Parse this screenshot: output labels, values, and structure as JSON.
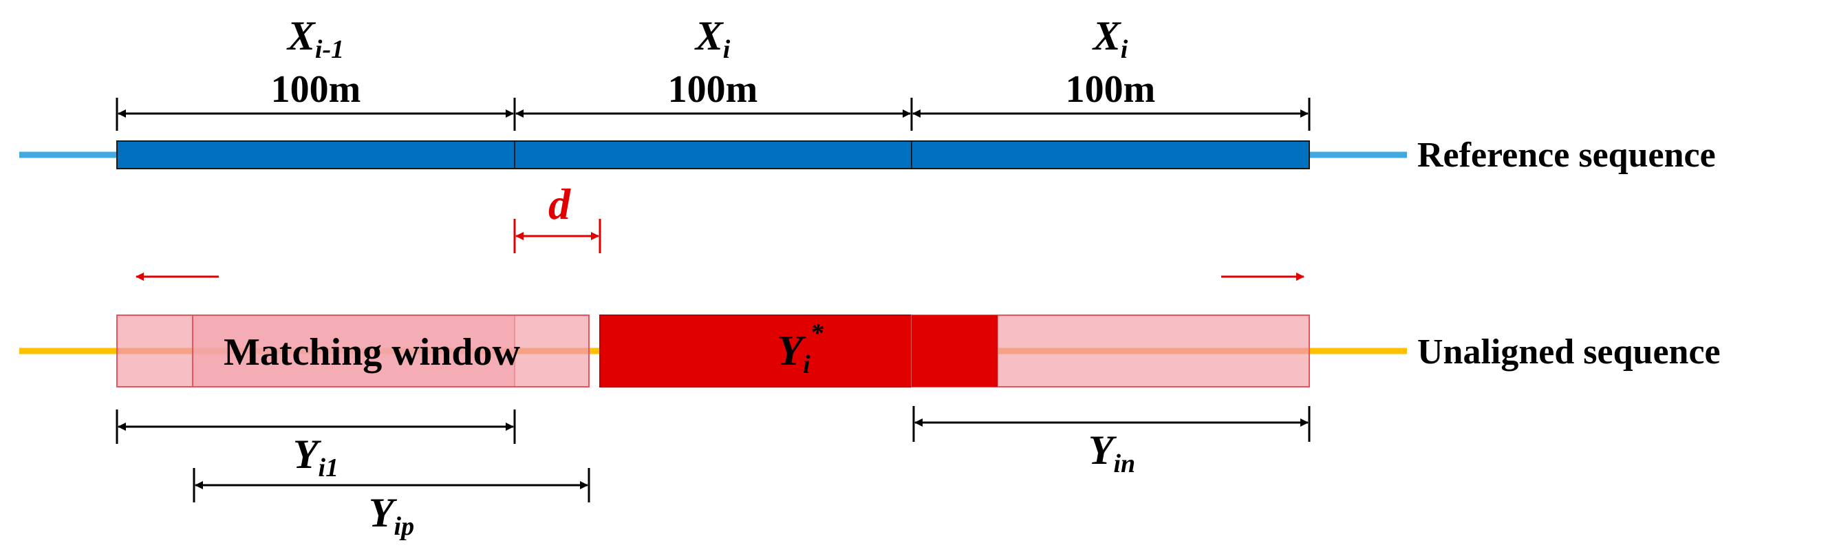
{
  "reference": {
    "label": "Reference sequence",
    "segments": [
      {
        "symbol": "X",
        "subscript": "i-1",
        "length": "100m"
      },
      {
        "symbol": "X",
        "subscript": "i",
        "length": "100m"
      },
      {
        "symbol": "X",
        "subscript": "i",
        "length": "100m"
      }
    ]
  },
  "unaligned": {
    "label": "Unaligned sequence",
    "matching_window_label": "Matching window",
    "target": {
      "symbol": "Y",
      "subscript": "i",
      "superscript": "*"
    },
    "offset_label": "d",
    "windows": [
      {
        "symbol": "Y",
        "subscript": "i1"
      },
      {
        "symbol": "Y",
        "subscript": "ip"
      },
      {
        "symbol": "Y",
        "subscript": "in"
      }
    ]
  },
  "colors": {
    "reference_bar": "#0070c0",
    "reference_line": "#3fa9e0",
    "unaligned_line": "#ffc000",
    "target_box": "#e00000",
    "window_fill": "#f3a6ad",
    "accent": "#e00000"
  }
}
